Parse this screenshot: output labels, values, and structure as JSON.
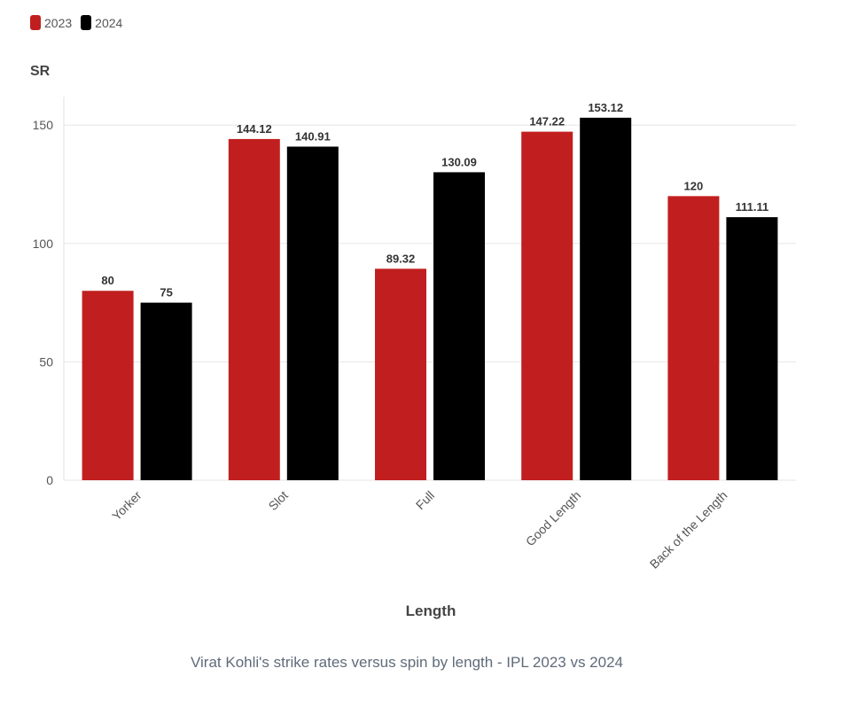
{
  "chart_data": {
    "type": "bar",
    "title": "",
    "caption": "Virat Kohli's strike rates versus spin by length - IPL 2023 vs 2024",
    "xlabel": "Length",
    "ylabel": "SR",
    "ylim": [
      0,
      162
    ],
    "yticks": [
      0,
      50,
      100,
      150
    ],
    "ytick_labels": [
      "0",
      "50",
      "100",
      "150"
    ],
    "grid": true,
    "legend_position": "top-left",
    "categories": [
      "Yorker",
      "Slot",
      "Full",
      "Good Length",
      "Back of the Length"
    ],
    "series": [
      {
        "name": "2023",
        "color": "#c11f1f",
        "values": [
          80,
          144.12,
          89.32,
          147.22,
          120
        ],
        "labels": [
          "80",
          "144.12",
          "89.32",
          "147.22",
          "120"
        ]
      },
      {
        "name": "2024",
        "color": "#000000",
        "values": [
          75,
          140.91,
          130.09,
          153.12,
          111.11
        ],
        "labels": [
          "75",
          "140.91",
          "130.09",
          "153.12",
          "111.11"
        ]
      }
    ]
  }
}
